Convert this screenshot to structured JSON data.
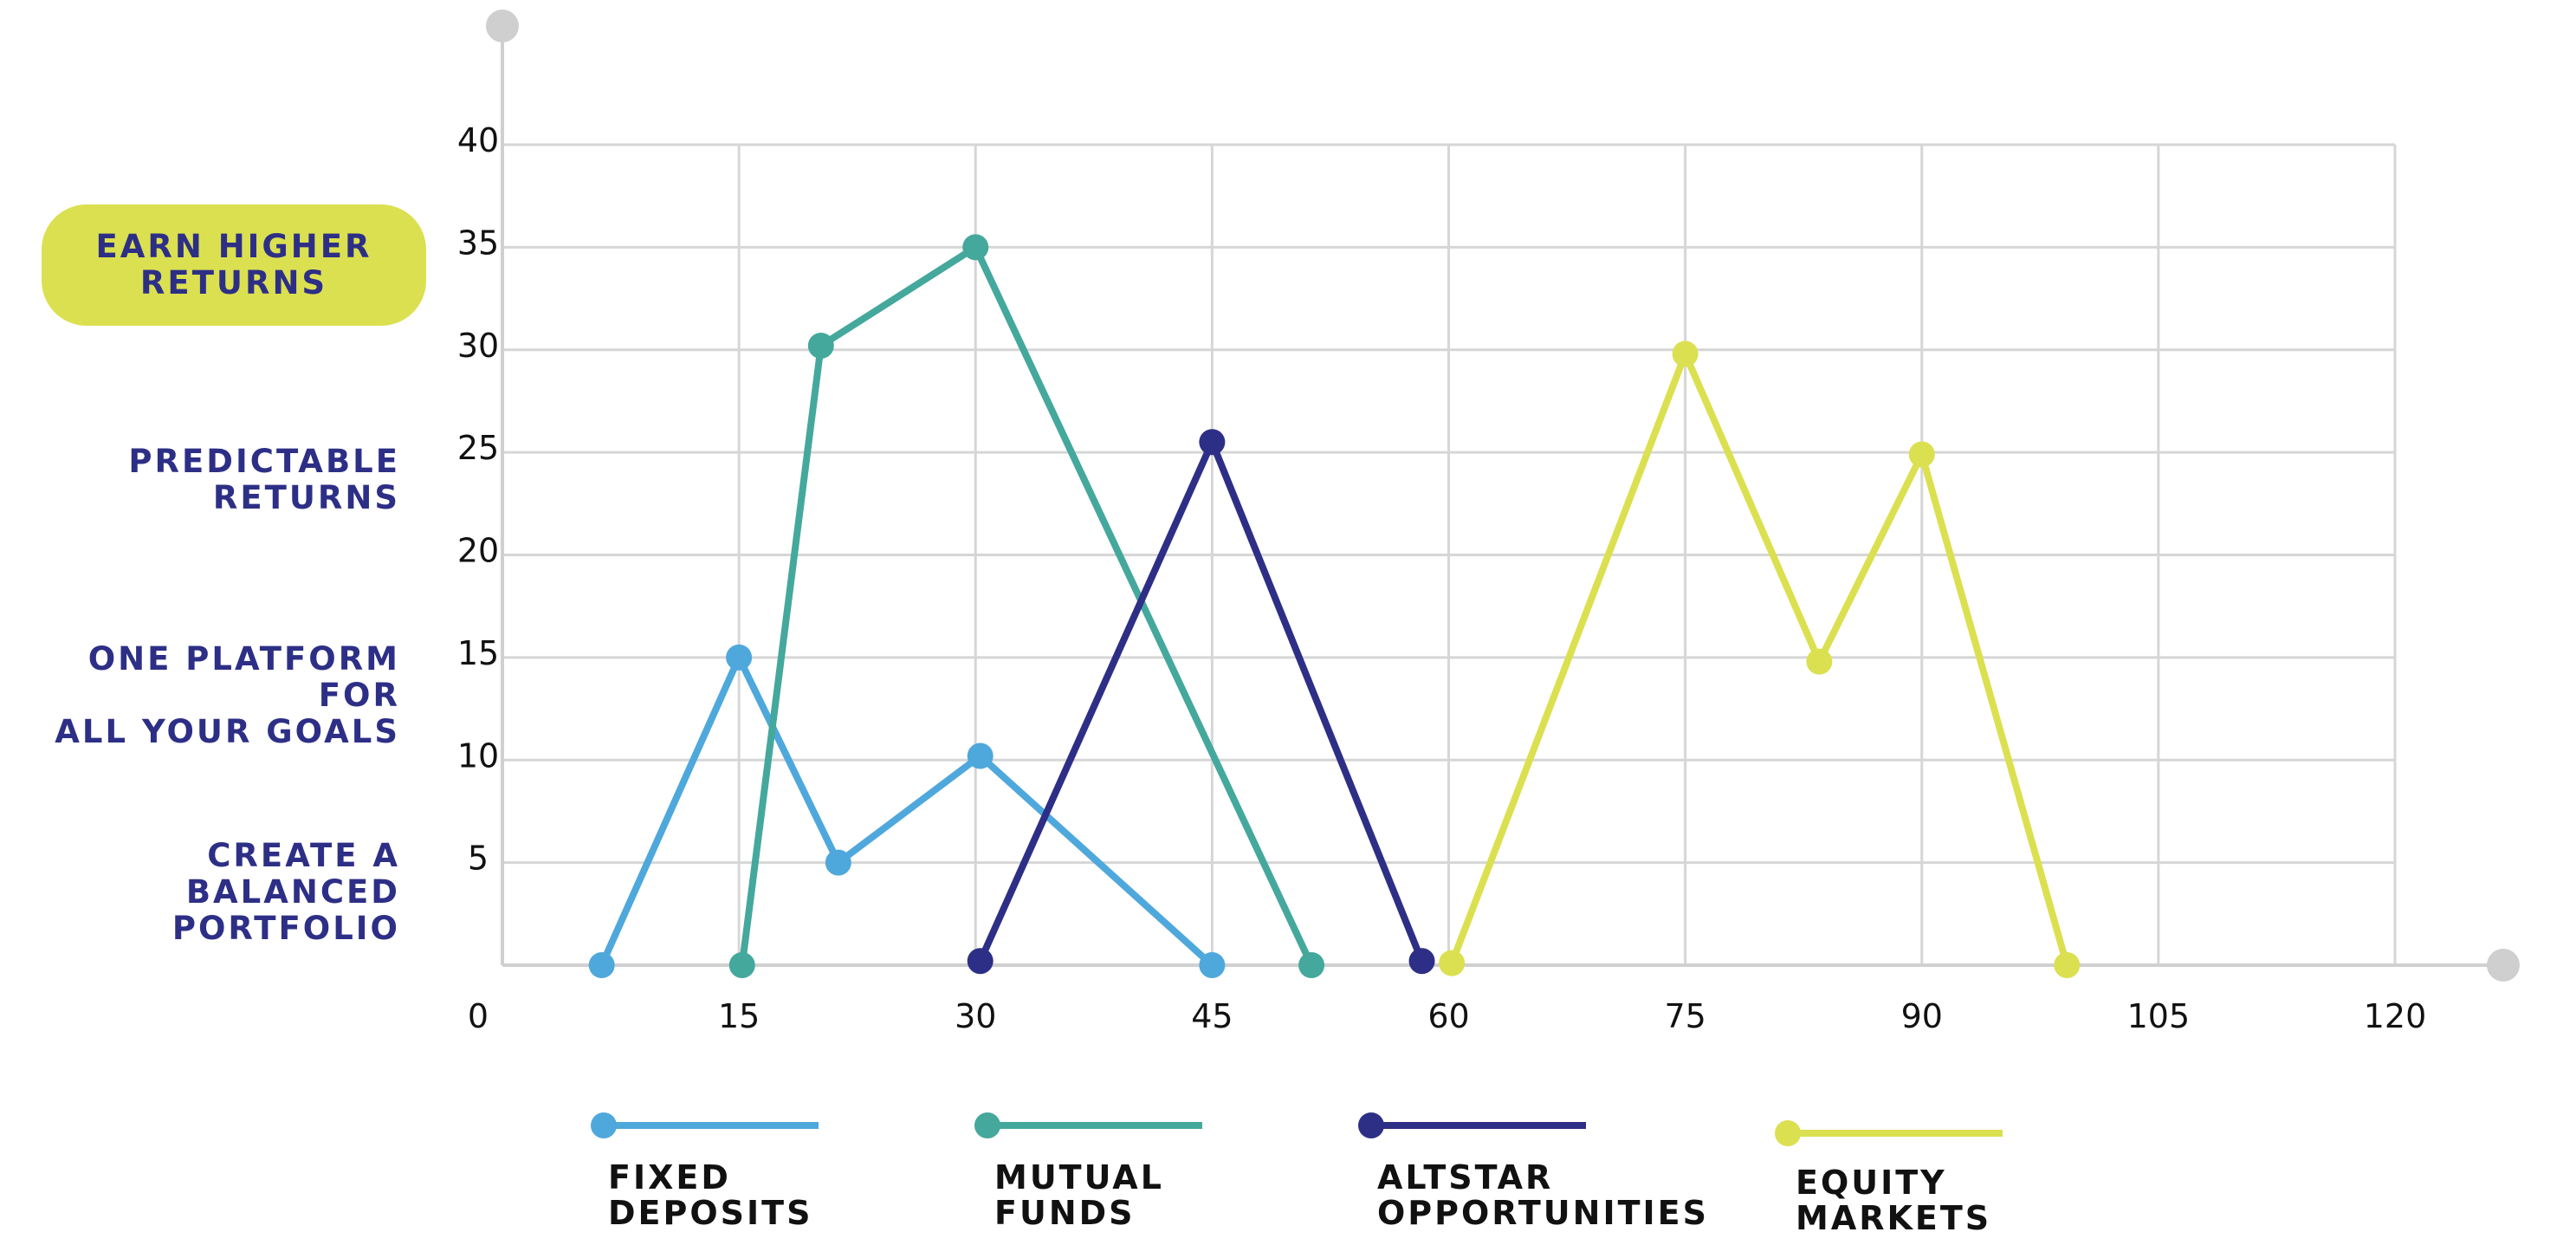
{
  "chart_data": {
    "type": "line",
    "title": "",
    "xlabel": "",
    "ylabel": "",
    "xlim": [
      0,
      120
    ],
    "ylim": [
      0,
      40
    ],
    "x_ticks": [
      "0",
      "15",
      "30",
      "45",
      "60",
      "75",
      "90",
      "105",
      "120"
    ],
    "y_ticks": [
      "5",
      "10",
      "15",
      "20",
      "25",
      "30",
      "35",
      "40"
    ],
    "grid": true,
    "legend_position": "bottom",
    "series": [
      {
        "name": "FIXED\nDEPOSITS",
        "color": "#4fa8dc",
        "points": [
          [
            6.3,
            0
          ],
          [
            15,
            15
          ],
          [
            21.3,
            5
          ],
          [
            30.3,
            10.2
          ],
          [
            45,
            0
          ]
        ]
      },
      {
        "name": "MUTUAL\nFUNDS",
        "color": "#45a89c",
        "points": [
          [
            15.2,
            0
          ],
          [
            20.2,
            30.2
          ],
          [
            30,
            35
          ],
          [
            51.3,
            0
          ]
        ]
      },
      {
        "name": "ALTSTAR\nOPPORTUNITIES",
        "color": "#2d2f86",
        "points": [
          [
            30.3,
            0.2
          ],
          [
            45,
            25.5
          ],
          [
            58.3,
            0.2
          ]
        ]
      },
      {
        "name": "EQUITY\nMARKETS",
        "color": "#dbe050",
        "points": [
          [
            60.2,
            0.1
          ],
          [
            75,
            29.8
          ],
          [
            83.5,
            14.8
          ],
          [
            90,
            24.9
          ],
          [
            99.2,
            0
          ]
        ]
      }
    ]
  },
  "side_labels": {
    "pill": "EARN HIGHER\nRETURNS",
    "predictable": "PREDICTABLE\nRETURNS",
    "platform": "ONE PLATFORM FOR\nALL YOUR GOALS",
    "balanced": "CREATE A BALANCED\nPORTFOLIO"
  },
  "colors": {
    "pill_bg": "#dbe050",
    "label_text": "#2d2f86",
    "axis_dot": "#cfcfcf"
  }
}
